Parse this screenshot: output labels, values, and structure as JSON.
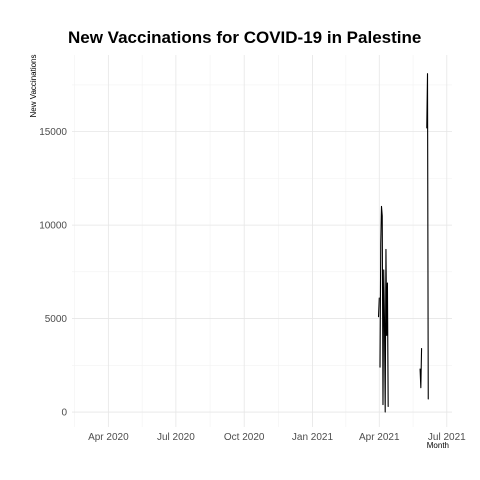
{
  "chart_data": {
    "type": "line",
    "title": "New Vaccinations for COVID-19 in Palestine",
    "xlabel": "Month",
    "ylabel": "New Vaccinations",
    "xlim": [
      "2020-02-12",
      "2021-07-08"
    ],
    "ylim": [
      -800,
      19100
    ],
    "grid": true,
    "x_ticks": [
      {
        "date": "2020-04-01",
        "label": "Apr 2020"
      },
      {
        "date": "2020-07-01",
        "label": "Jul 2020"
      },
      {
        "date": "2020-10-01",
        "label": "Oct 2020"
      },
      {
        "date": "2021-01-01",
        "label": "Jan 2021"
      },
      {
        "date": "2021-04-01",
        "label": "Apr 2021"
      },
      {
        "date": "2021-07-01",
        "label": "Jul 2021"
      }
    ],
    "y_ticks": [
      {
        "value": 0,
        "label": "0"
      },
      {
        "value": 5000,
        "label": "5000"
      },
      {
        "value": 10000,
        "label": "10000"
      },
      {
        "value": 15000,
        "label": "15000"
      }
    ],
    "series": [
      {
        "color": "#000000",
        "segments": [
          [
            [
              "2021-03-31",
              5100
            ],
            [
              "2021-04-01",
              6100
            ]
          ],
          [
            [
              "2021-04-02",
              2400
            ],
            [
              "2021-04-03",
              9000
            ],
            [
              "2021-04-04",
              11000
            ],
            [
              "2021-04-05",
              10500
            ],
            [
              "2021-04-06",
              400
            ],
            [
              "2021-04-07",
              7600
            ],
            [
              "2021-04-08",
              5000
            ],
            [
              "2021-04-09",
              0
            ],
            [
              "2021-04-10",
              8700
            ],
            [
              "2021-04-11",
              4100
            ],
            [
              "2021-04-12",
              6900
            ],
            [
              "2021-04-13",
              300
            ]
          ],
          [
            [
              "2021-05-26",
              2300
            ],
            [
              "2021-05-27",
              1300
            ],
            [
              "2021-05-28",
              3400
            ]
          ],
          [
            [
              "2021-06-04",
              15200
            ],
            [
              "2021-06-05",
              18100
            ],
            [
              "2021-06-06",
              700
            ]
          ]
        ]
      }
    ]
  }
}
